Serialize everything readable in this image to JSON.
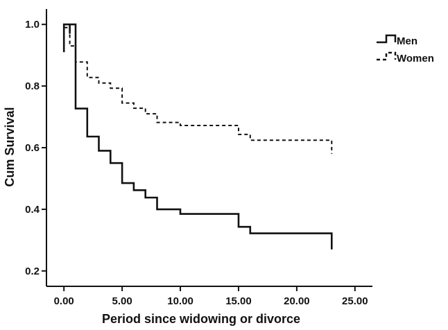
{
  "chart_data": {
    "type": "line",
    "title": "",
    "xlabel": "Period since widowing or divorce",
    "ylabel": "Cum Survival",
    "xlim": [
      -1.5,
      26.5
    ],
    "ylim": [
      0.15,
      1.05
    ],
    "x_ticks": [
      0,
      5,
      10,
      15,
      20,
      25
    ],
    "x_tick_labels": [
      "0.00",
      "5.00",
      "10.00",
      "15.00",
      "20.00",
      "25.00"
    ],
    "y_ticks": [
      0.2,
      0.4,
      0.6,
      0.8,
      1.0
    ],
    "y_tick_labels": [
      "0.2",
      "0.4",
      "0.6",
      "0.8",
      "1.0"
    ],
    "grid": false,
    "legend_position": "top-right",
    "series": [
      {
        "name": "Men",
        "style": "solid",
        "color": "#111111",
        "points": [
          [
            0,
            0.91
          ],
          [
            0,
            1.0
          ],
          [
            0.5,
            1.0
          ],
          [
            0.5,
            0.97
          ],
          [
            0.5,
            1.0
          ],
          [
            1,
            1.0
          ],
          [
            1,
            0.727
          ],
          [
            2,
            0.727
          ],
          [
            2,
            0.636
          ],
          [
            3,
            0.636
          ],
          [
            3,
            0.59
          ],
          [
            4,
            0.59
          ],
          [
            4,
            0.55
          ],
          [
            5,
            0.55
          ],
          [
            5,
            0.485
          ],
          [
            6,
            0.485
          ],
          [
            6,
            0.462
          ],
          [
            7,
            0.462
          ],
          [
            7,
            0.438
          ],
          [
            8,
            0.438
          ],
          [
            8,
            0.4
          ],
          [
            10,
            0.4
          ],
          [
            10,
            0.385
          ],
          [
            15,
            0.385
          ],
          [
            15,
            0.343
          ],
          [
            16,
            0.343
          ],
          [
            16,
            0.322
          ],
          [
            23,
            0.322
          ],
          [
            23,
            0.27
          ]
        ]
      },
      {
        "name": "Women",
        "style": "dashed",
        "color": "#111111",
        "points": [
          [
            0,
            0.95
          ],
          [
            0,
            0.99
          ],
          [
            0.5,
            0.99
          ],
          [
            0.5,
            0.93
          ],
          [
            1,
            0.93
          ],
          [
            1,
            0.878
          ],
          [
            2,
            0.878
          ],
          [
            2,
            0.828
          ],
          [
            3,
            0.828
          ],
          [
            3,
            0.81
          ],
          [
            4,
            0.81
          ],
          [
            4,
            0.793
          ],
          [
            5,
            0.793
          ],
          [
            5,
            0.745
          ],
          [
            6,
            0.745
          ],
          [
            6,
            0.728
          ],
          [
            7,
            0.728
          ],
          [
            7,
            0.71
          ],
          [
            8,
            0.71
          ],
          [
            8,
            0.682
          ],
          [
            10,
            0.682
          ],
          [
            10,
            0.672
          ],
          [
            15,
            0.672
          ],
          [
            15,
            0.643
          ],
          [
            16,
            0.643
          ],
          [
            16,
            0.624
          ],
          [
            23,
            0.624
          ],
          [
            23,
            0.58
          ]
        ]
      }
    ]
  }
}
